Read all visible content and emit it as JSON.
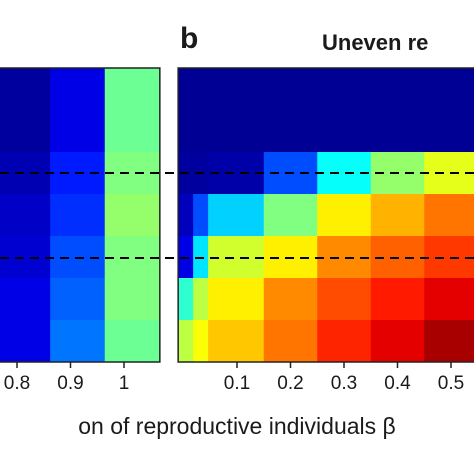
{
  "chart_data": [
    {
      "type": "heatmap",
      "xlim": [
        0.75,
        1.067
      ],
      "xticks": [
        0.8,
        0.9,
        1
      ],
      "xbins": [
        0.75,
        0.862,
        0.964,
        1.067
      ],
      "z": [
        [
          0.03,
          0.1,
          0.48
        ],
        [
          0.03,
          0.1,
          0.48
        ],
        [
          0.05,
          0.15,
          0.5
        ],
        [
          0.07,
          0.17,
          0.52
        ],
        [
          0.08,
          0.2,
          0.5
        ],
        [
          0.1,
          0.22,
          0.5
        ],
        [
          0.1,
          0.24,
          0.48
        ]
      ]
    },
    {
      "type": "heatmap",
      "panel_label": "b",
      "title": "Uneven re",
      "xlabel": "on of reproductive individuals β",
      "xlim": [
        -0.01,
        0.55
      ],
      "xticks": [
        0.1,
        0.2,
        0.3,
        0.4,
        0.5
      ],
      "xbins": [
        -0.01,
        0.018,
        0.046,
        0.15,
        0.25,
        0.35,
        0.45,
        0.55
      ],
      "z": [
        [
          0.02,
          0.02,
          0.02,
          0.02,
          0.02,
          0.02,
          0.02
        ],
        [
          0.02,
          0.02,
          0.02,
          0.02,
          0.02,
          0.02,
          0.02
        ],
        [
          0.03,
          0.03,
          0.04,
          0.2,
          0.38,
          0.52,
          0.6
        ],
        [
          0.06,
          0.2,
          0.33,
          0.5,
          0.64,
          0.7,
          0.76
        ],
        [
          0.1,
          0.35,
          0.58,
          0.64,
          0.74,
          0.78,
          0.82
        ],
        [
          0.42,
          0.56,
          0.64,
          0.74,
          0.8,
          0.85,
          0.9
        ],
        [
          0.56,
          0.62,
          0.68,
          0.76,
          0.84,
          0.9,
          0.96
        ]
      ]
    }
  ]
}
